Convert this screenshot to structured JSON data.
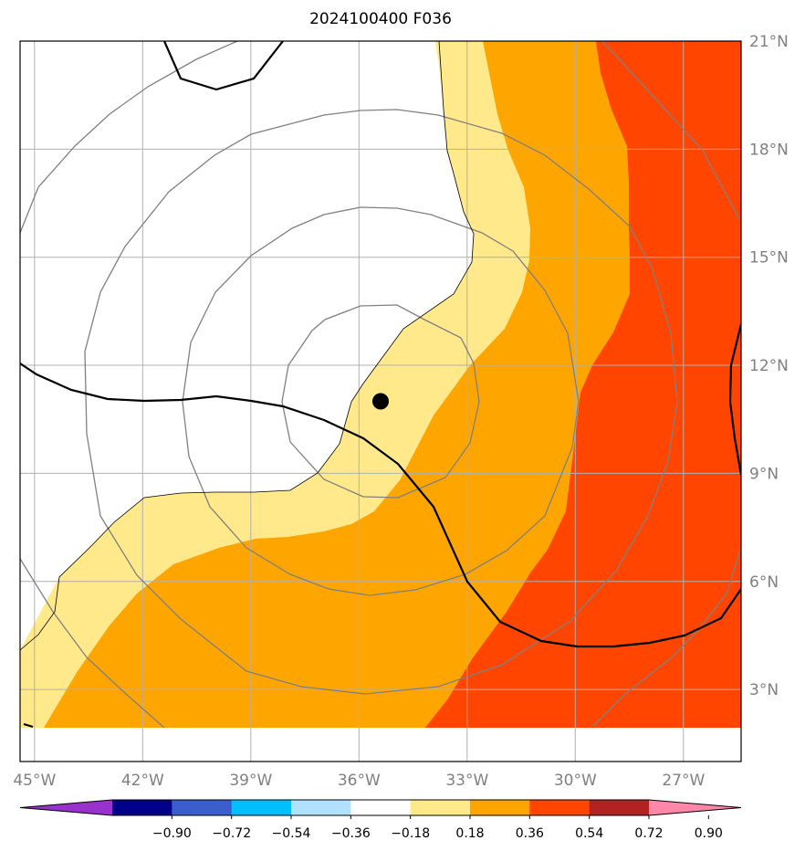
{
  "chart_data": {
    "type": "map-contour",
    "title": "2024100400 F036",
    "lon_ticks": [
      -45,
      -42,
      -39,
      -36,
      -33,
      -30,
      -27
    ],
    "lon_labels": [
      "45°W",
      "42°W",
      "39°W",
      "36°W",
      "33°W",
      "30°W",
      "27°W"
    ],
    "lat_ticks": [
      3,
      6,
      9,
      12,
      15,
      18,
      21
    ],
    "lat_labels": [
      "3°N",
      "6°N",
      "9°N",
      "12°N",
      "15°N",
      "18°N",
      "21°N"
    ],
    "lon_range": [
      -45.4,
      -25.4
    ],
    "lat_range": [
      1.0,
      21.0
    ],
    "data_lat_min": 2.0,
    "grid": true,
    "center_marker": {
      "lon": -35.4,
      "lat": 11.0
    },
    "fill_levels": [
      {
        "min": 0.18,
        "max": 0.36,
        "color": "#FFE98A"
      },
      {
        "min": 0.36,
        "max": 0.54,
        "color": "#FFA500"
      },
      {
        "min": 0.54,
        "max": 0.72,
        "color": "#FF4500"
      }
    ],
    "colorbar": {
      "colors": [
        "#9932CC",
        "#00008B",
        "#3A5FCD",
        "#00BFFF",
        "#B0E2FF",
        "#FFFFFF",
        "#FFE98A",
        "#FFA500",
        "#FF4500",
        "#B22222",
        "#FF88AA"
      ],
      "tick_labels": [
        "−0.90",
        "−0.72",
        "−0.54",
        "−0.36",
        "−0.18",
        "0.18",
        "0.36",
        "0.54",
        "0.72",
        "0.90"
      ],
      "extend": "both"
    },
    "range_rings": {
      "center": {
        "lon": -35.4,
        "lat": 11.0
      },
      "radii_deg": [
        2.5,
        5.2,
        8.6,
        11.5
      ],
      "color": "#808080"
    },
    "contour_color": "#000000"
  }
}
